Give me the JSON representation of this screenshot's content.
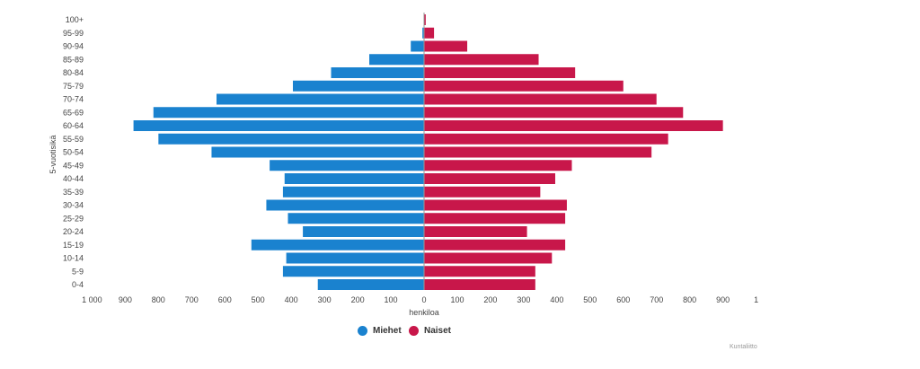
{
  "chart_data": {
    "type": "bar",
    "orientation": "horizontal",
    "layout": "population-pyramid",
    "categories": [
      "100+",
      "95-99",
      "90-94",
      "85-89",
      "80-84",
      "75-79",
      "70-74",
      "65-69",
      "60-64",
      "55-59",
      "50-54",
      "45-49",
      "40-44",
      "35-39",
      "30-34",
      "25-29",
      "20-24",
      "15-19",
      "10-14",
      "5-9",
      "0-4"
    ],
    "series": [
      {
        "name": "Miehet",
        "color": "#1a82cf",
        "values": [
          0,
          5,
          40,
          165,
          280,
          395,
          625,
          815,
          875,
          800,
          640,
          465,
          420,
          425,
          475,
          410,
          365,
          520,
          415,
          425,
          320
        ]
      },
      {
        "name": "Naiset",
        "color": "#c8174a",
        "values": [
          5,
          30,
          130,
          345,
          455,
          600,
          700,
          780,
          900,
          735,
          685,
          445,
          395,
          350,
          430,
          425,
          310,
          425,
          385,
          335,
          335
        ]
      }
    ],
    "xlabel": "henkiloa",
    "ylabel": "5-vuotisikä",
    "x_ticks": [
      "1 000",
      "900",
      "800",
      "700",
      "600",
      "500",
      "400",
      "300",
      "200",
      "100",
      "0",
      "100",
      "200",
      "300",
      "400",
      "500",
      "600",
      "700",
      "800",
      "900",
      "1"
    ],
    "xlim": [
      -1000,
      1000
    ],
    "legend": "bottom-center",
    "grid": false
  },
  "credits": "Kuntaliitto"
}
